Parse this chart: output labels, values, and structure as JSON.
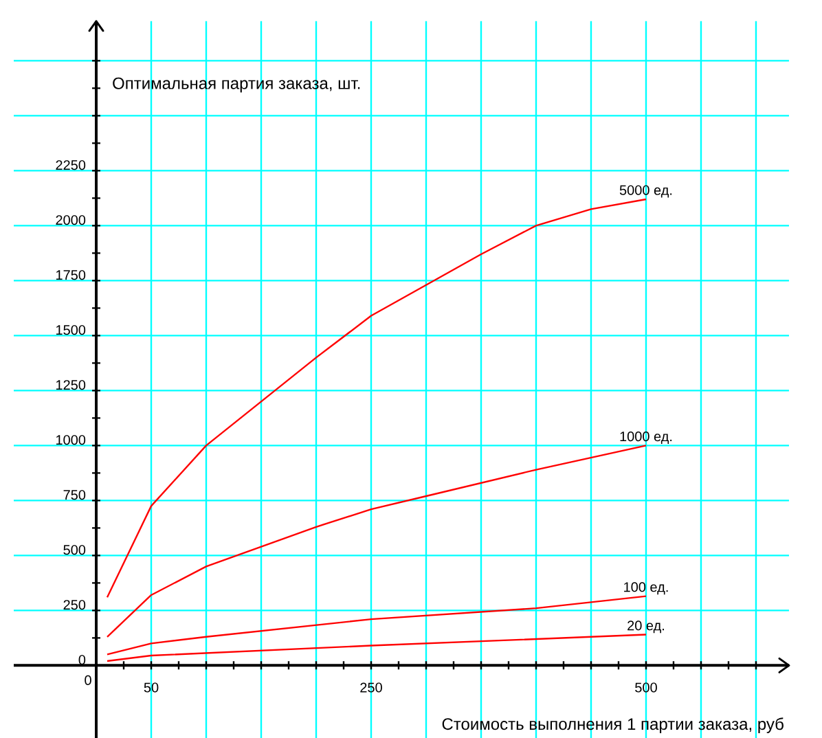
{
  "chart_data": {
    "type": "line",
    "ylabel": "Оптимальная партия заказа, шт.",
    "xlabel": "Стоимость выполнения 1 партии заказа, руб",
    "xlim": [
      -75,
      630
    ],
    "ylim": [
      -330,
      2930
    ],
    "xticks": [
      {
        "value": 0,
        "label": null
      },
      50,
      {
        "value": 100,
        "label": null
      },
      {
        "value": 150,
        "label": null
      },
      {
        "value": 200,
        "label": null
      },
      250,
      {
        "value": 300,
        "label": null
      },
      {
        "value": 350,
        "label": null
      },
      {
        "value": 400,
        "label": null
      },
      {
        "value": 450,
        "label": null
      },
      500,
      {
        "value": 550,
        "label": null
      },
      {
        "value": 600,
        "label": null
      }
    ],
    "yticks": [
      0,
      250,
      500,
      750,
      1000,
      1250,
      1500,
      1750,
      2000,
      2250,
      {
        "value": 2500,
        "label": null
      },
      {
        "value": 2750,
        "label": null
      }
    ],
    "grid": true,
    "legend": false,
    "marker": "none",
    "line_style": "solid",
    "annotations": [
      "0"
    ],
    "series": [
      {
        "name": "5000 ед.",
        "color": "#ff0000",
        "x": [
          10,
          50,
          100,
          150,
          200,
          250,
          300,
          350,
          400,
          450,
          500
        ],
        "values": [
          310,
          725,
          1000,
          1200,
          1400,
          1590,
          1730,
          1870,
          2000,
          2075,
          2120
        ]
      },
      {
        "name": "1000 ед.",
        "color": "#ff0000",
        "x": [
          10,
          50,
          100,
          150,
          200,
          250,
          300,
          400,
          500
        ],
        "values": [
          130,
          320,
          450,
          540,
          630,
          710,
          770,
          890,
          1000
        ]
      },
      {
        "name": "100 ед.",
        "color": "#ff0000",
        "x": [
          10,
          50,
          100,
          250,
          400,
          500
        ],
        "values": [
          50,
          100,
          130,
          210,
          260,
          315
        ]
      },
      {
        "name": "20 ед.",
        "color": "#ff0000",
        "x": [
          10,
          50,
          250,
          500
        ],
        "values": [
          20,
          45,
          90,
          140
        ]
      }
    ]
  }
}
